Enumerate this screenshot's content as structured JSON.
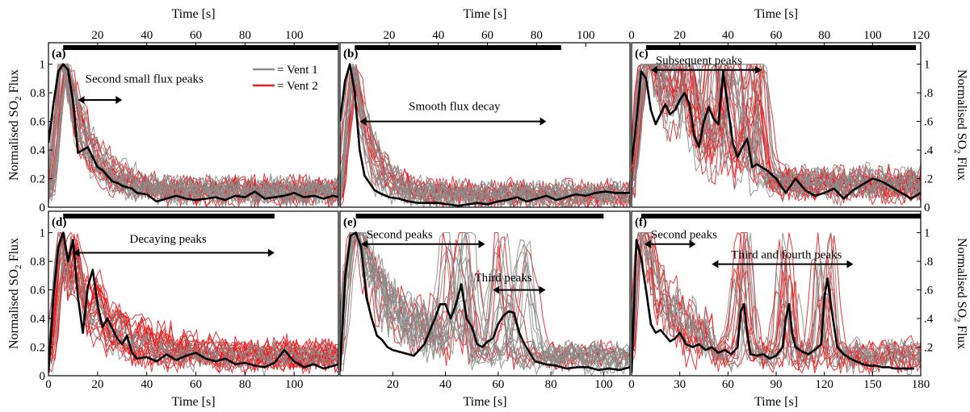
{
  "colors": {
    "vent1": "#8c8c8c",
    "vent2": "#e32222",
    "mean": "#000000",
    "bar": "#000000"
  },
  "legend": [
    {
      "label": "= Vent 1",
      "color": "#8c8c8c"
    },
    {
      "label": "= Vent 2",
      "color": "#e32222"
    }
  ],
  "axes": {
    "xlabel": "Time [s]",
    "ylabel_prefix": "Normalised SO",
    "ylabel_sub": "2",
    "ylabel_suffix": " Flux"
  },
  "chart_data": [
    {
      "panel": "(a)",
      "type": "line",
      "xlim": [
        0,
        118
      ],
      "ylim": [
        0,
        1.15
      ],
      "xticks": [
        20,
        40,
        60,
        80,
        100
      ],
      "yticks": [
        0,
        0.2,
        0.4,
        0.6,
        0.8,
        1
      ],
      "bar_extent": [
        6,
        118
      ],
      "annotations": [
        {
          "text": "Second small flux peaks",
          "arrow": [
            12,
            30
          ],
          "arrow_y": 0.75,
          "text_x": 15,
          "text_y": 0.87
        }
      ],
      "profile": "single",
      "peak_t": 6,
      "decay_tau": 9,
      "baseline": 0.07,
      "mean_x": [
        0,
        2,
        4,
        6,
        8,
        10,
        12,
        14,
        16,
        18,
        20,
        22,
        24,
        26,
        28,
        30,
        32,
        34,
        36,
        40,
        44,
        48,
        52,
        56,
        60,
        64,
        68,
        72,
        76,
        80,
        84,
        88,
        92,
        96,
        100,
        104,
        108,
        112,
        116,
        118
      ],
      "mean_y": [
        0.45,
        0.72,
        0.95,
        1.0,
        0.96,
        0.74,
        0.38,
        0.4,
        0.42,
        0.35,
        0.28,
        0.26,
        0.22,
        0.18,
        0.17,
        0.15,
        0.14,
        0.13,
        0.1,
        0.09,
        0.04,
        0.06,
        0.08,
        0.06,
        0.05,
        0.06,
        0.07,
        0.05,
        0.08,
        0.07,
        0.11,
        0.06,
        0.07,
        0.08,
        0.1,
        0.07,
        0.08,
        0.06,
        0.08,
        0.07
      ],
      "n_vent1": 14,
      "n_vent2": 14
    },
    {
      "panel": "(b)",
      "type": "line",
      "xlim": [
        0,
        118
      ],
      "ylim": [
        0,
        1.15
      ],
      "xticks": [
        20,
        40,
        60,
        80,
        100
      ],
      "yticks": [],
      "bar_extent": [
        6,
        90
      ],
      "annotations": [
        {
          "text": "Smooth flux decay",
          "arrow": [
            8,
            84
          ],
          "arrow_y": 0.6,
          "text_x": 28,
          "text_y": 0.68
        }
      ],
      "profile": "single",
      "peak_t": 5,
      "decay_tau": 6,
      "baseline": 0.05,
      "mean_x": [
        0,
        2,
        4,
        6,
        8,
        10,
        12,
        14,
        16,
        20,
        24,
        28,
        32,
        36,
        40,
        44,
        48,
        52,
        56,
        60,
        64,
        68,
        72,
        76,
        80,
        84,
        88,
        92,
        96,
        100,
        104,
        108,
        112,
        118
      ],
      "mean_y": [
        0.6,
        0.88,
        1.0,
        0.8,
        0.4,
        0.22,
        0.17,
        0.12,
        0.1,
        0.07,
        0.06,
        0.04,
        0.03,
        0.03,
        0.03,
        0.02,
        0.01,
        0.02,
        0.03,
        0.02,
        0.04,
        0.05,
        0.07,
        0.04,
        0.06,
        0.08,
        0.05,
        0.07,
        0.09,
        0.08,
        0.1,
        0.11,
        0.1,
        0.1
      ],
      "n_vent1": 12,
      "n_vent2": 12
    },
    {
      "panel": "(c)",
      "type": "line",
      "xlim": [
        0,
        120
      ],
      "ylim": [
        0,
        1.15
      ],
      "xticks": [
        0,
        20,
        40,
        60,
        80,
        100,
        120
      ],
      "yticks": [
        0,
        0.2,
        0.4,
        0.6,
        0.8,
        1
      ],
      "bar_extent": [
        6,
        118
      ],
      "annotations": [
        {
          "text": "Subsequent peaks",
          "arrow": [
            8,
            54
          ],
          "arrow_y": 0.96,
          "text_x": 10,
          "text_y": 1.0
        }
      ],
      "profile": "multi",
      "peak_t": 5,
      "decay_tau": 14,
      "baseline": 0.12,
      "extra_peaks": [
        20,
        38,
        48
      ],
      "mean_x": [
        0,
        2,
        4,
        6,
        8,
        10,
        12,
        14,
        16,
        18,
        20,
        22,
        24,
        26,
        28,
        30,
        32,
        34,
        36,
        38,
        40,
        42,
        44,
        46,
        48,
        50,
        52,
        56,
        60,
        64,
        68,
        72,
        76,
        80,
        84,
        88,
        92,
        96,
        100,
        104,
        108,
        112,
        116,
        120
      ],
      "mean_y": [
        0.3,
        0.6,
        0.95,
        0.9,
        0.68,
        0.58,
        0.65,
        0.72,
        0.65,
        0.68,
        0.75,
        0.8,
        0.72,
        0.5,
        0.42,
        0.6,
        0.7,
        0.62,
        0.58,
        0.95,
        0.7,
        0.45,
        0.35,
        0.42,
        0.48,
        0.28,
        0.3,
        0.26,
        0.2,
        0.1,
        0.2,
        0.12,
        0.08,
        0.1,
        0.13,
        0.06,
        0.12,
        0.16,
        0.2,
        0.18,
        0.14,
        0.1,
        0.06,
        0.1
      ],
      "n_vent1": 12,
      "n_vent2": 18
    },
    {
      "panel": "(d)",
      "type": "line",
      "xlim": [
        0,
        118
      ],
      "ylim": [
        0,
        1.15
      ],
      "xticks": [
        0,
        20,
        40,
        60,
        80,
        100
      ],
      "yticks": [
        0,
        0.2,
        0.4,
        0.6,
        0.8,
        1
      ],
      "bar_extent": [
        6,
        92
      ],
      "annotations": [
        {
          "text": "Decaying peaks",
          "arrow": [
            10,
            92
          ],
          "arrow_y": 0.86,
          "text_x": 33,
          "text_y": 0.93
        }
      ],
      "profile": "decaying",
      "peak_t": 6,
      "decay_tau": 14,
      "baseline": 0.1,
      "mean_x": [
        0,
        2,
        4,
        6,
        8,
        10,
        12,
        14,
        16,
        18,
        20,
        22,
        24,
        26,
        28,
        30,
        32,
        34,
        36,
        40,
        44,
        48,
        52,
        56,
        60,
        64,
        68,
        72,
        76,
        80,
        84,
        88,
        92,
        96,
        100,
        104,
        108,
        112,
        118
      ],
      "mean_y": [
        0.02,
        0.55,
        0.9,
        1.0,
        0.8,
        0.95,
        0.55,
        0.3,
        0.62,
        0.74,
        0.5,
        0.34,
        0.4,
        0.33,
        0.26,
        0.22,
        0.28,
        0.16,
        0.12,
        0.13,
        0.1,
        0.15,
        0.11,
        0.14,
        0.16,
        0.12,
        0.1,
        0.12,
        0.08,
        0.09,
        0.07,
        0.06,
        0.09,
        0.18,
        0.1,
        0.06,
        0.08,
        0.05,
        0.08
      ],
      "n_vent1": 6,
      "n_vent2": 20
    },
    {
      "panel": "(e)",
      "type": "line",
      "xlim": [
        0,
        110
      ],
      "ylim": [
        0,
        1.15
      ],
      "xticks": [
        20,
        40,
        60,
        80,
        100
      ],
      "yticks": [],
      "bar_extent": [
        6,
        100
      ],
      "annotations": [
        {
          "text": "Second peaks",
          "arrow": [
            8,
            55
          ],
          "arrow_y": 0.92,
          "text_x": 10,
          "text_y": 0.96
        },
        {
          "text": "Third peaks",
          "arrow": [
            58,
            78
          ],
          "arrow_y": 0.6,
          "text_x": 51,
          "text_y": 0.66
        }
      ],
      "profile": "multi",
      "peak_t": 5,
      "decay_tau": 9,
      "baseline": 0.08,
      "extra_peaks": [
        45,
        65
      ],
      "mean_x": [
        0,
        2,
        4,
        6,
        8,
        10,
        12,
        14,
        16,
        18,
        20,
        24,
        28,
        32,
        36,
        38,
        40,
        42,
        44,
        46,
        48,
        50,
        52,
        54,
        56,
        58,
        60,
        62,
        64,
        66,
        68,
        70,
        74,
        78,
        82,
        86,
        90,
        94,
        98,
        102,
        106,
        110
      ],
      "mean_y": [
        0.03,
        0.7,
        0.98,
        1.0,
        0.9,
        0.55,
        0.4,
        0.28,
        0.25,
        0.2,
        0.18,
        0.16,
        0.14,
        0.22,
        0.4,
        0.5,
        0.5,
        0.4,
        0.5,
        0.64,
        0.4,
        0.34,
        0.22,
        0.2,
        0.24,
        0.26,
        0.36,
        0.42,
        0.45,
        0.44,
        0.3,
        0.22,
        0.1,
        0.08,
        0.07,
        0.05,
        0.06,
        0.06,
        0.04,
        0.05,
        0.04,
        0.06
      ],
      "n_vent1": 14,
      "n_vent2": 6
    },
    {
      "panel": "(f)",
      "type": "line",
      "xlim": [
        0,
        180
      ],
      "ylim": [
        0,
        1.15
      ],
      "xticks": [
        0,
        30,
        60,
        90,
        120,
        150,
        180
      ],
      "yticks": [
        0.2,
        0.4,
        0.6,
        0.8,
        1
      ],
      "bar_extent": [
        6,
        180
      ],
      "annotations": [
        {
          "text": "Second peaks",
          "arrow": [
            8,
            40
          ],
          "arrow_y": 0.92,
          "text_x": 12,
          "text_y": 0.96
        },
        {
          "text": "Third and fourth peaks",
          "arrow": [
            50,
            138
          ],
          "arrow_y": 0.78,
          "text_x": 62,
          "text_y": 0.82
        }
      ],
      "profile": "multi",
      "peak_t": 5,
      "decay_tau": 12,
      "baseline": 0.1,
      "extra_peaks": [
        70,
        97,
        120
      ],
      "mean_x": [
        0,
        3,
        6,
        9,
        12,
        15,
        18,
        21,
        24,
        27,
        30,
        34,
        38,
        42,
        46,
        50,
        54,
        58,
        62,
        66,
        68,
        70,
        72,
        74,
        78,
        82,
        86,
        90,
        94,
        96,
        98,
        100,
        102,
        106,
        110,
        114,
        118,
        120,
        122,
        124,
        126,
        128,
        132,
        136,
        140,
        144,
        148,
        152,
        156,
        160,
        164,
        168,
        172,
        176
      ],
      "mean_y": [
        0.02,
        0.95,
        0.82,
        0.6,
        0.36,
        0.3,
        0.32,
        0.28,
        0.24,
        0.26,
        0.3,
        0.22,
        0.2,
        0.22,
        0.18,
        0.2,
        0.16,
        0.18,
        0.15,
        0.2,
        0.45,
        0.5,
        0.3,
        0.15,
        0.14,
        0.15,
        0.12,
        0.14,
        0.2,
        0.4,
        0.5,
        0.3,
        0.2,
        0.17,
        0.15,
        0.18,
        0.22,
        0.55,
        0.68,
        0.5,
        0.35,
        0.2,
        0.15,
        0.12,
        0.1,
        0.08,
        0.07,
        0.07,
        0.06,
        0.06,
        0.05,
        0.05,
        0.05,
        0.05
      ],
      "n_vent1": 7,
      "n_vent2": 10
    }
  ]
}
